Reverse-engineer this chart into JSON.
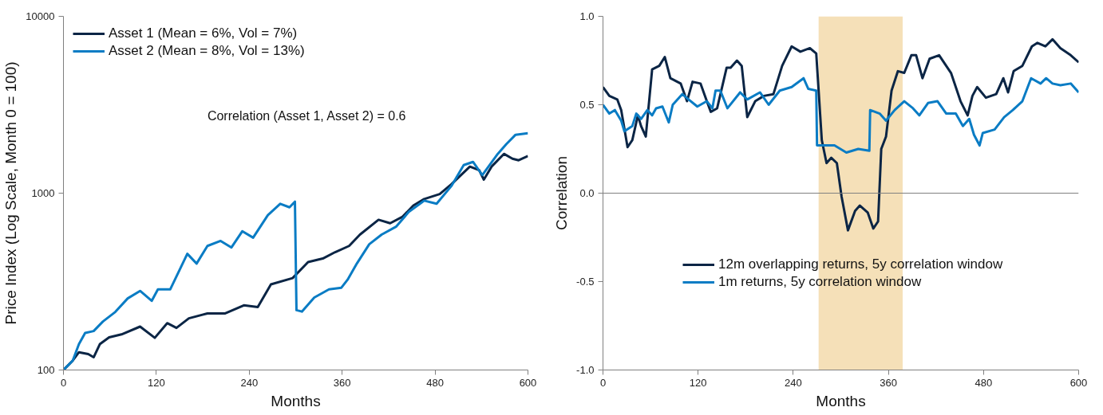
{
  "chart_data": [
    {
      "type": "line",
      "xlabel": "Months",
      "ylabel": "Price Index (Log Scale, Month 0 = 100)",
      "log": "y",
      "xlim": [
        0,
        600
      ],
      "xticks": [
        0,
        120,
        240,
        360,
        480,
        600
      ],
      "ylim": [
        100,
        10000
      ],
      "yticks": [
        100,
        1000,
        10000
      ],
      "grid": false,
      "legend": "top left",
      "annotations": [
        "Correlation (Asset 1, Asset 2) = 0.6"
      ],
      "series": [
        {
          "name": "Asset 1 (Mean = 6%, Vol = 7%)",
          "color": "#0b2545",
          "x": [
            0,
            12,
            20,
            32,
            39,
            47,
            59,
            75,
            99,
            118,
            134,
            146,
            162,
            186,
            209,
            233,
            251,
            268,
            296,
            316,
            335,
            351,
            369,
            383,
            407,
            422,
            438,
            452,
            466,
            486,
            501,
            525,
            537,
            543,
            553,
            569,
            580,
            588,
            600
          ],
          "values": [
            100,
            113,
            126,
            123,
            118,
            140,
            153,
            159,
            176,
            152,
            184,
            173,
            196,
            209,
            209,
            232,
            227,
            305,
            331,
            408,
            427,
            464,
            503,
            583,
            707,
            676,
            736,
            851,
            927,
            988,
            1122,
            1413,
            1349,
            1193,
            1413,
            1668,
            1567,
            1535,
            1622
          ]
        },
        {
          "name": "Asset 2 (Mean = 8%, Vol = 13%)",
          "color": "#0a7cc4",
          "x": [
            0,
            12,
            20,
            28,
            39,
            51,
            67,
            83,
            99,
            114,
            122,
            138,
            150,
            160,
            172,
            186,
            203,
            217,
            231,
            245,
            264,
            280,
            292,
            299,
            301,
            308,
            324,
            343,
            359,
            367,
            379,
            395,
            411,
            430,
            446,
            466,
            482,
            501,
            517,
            529,
            541,
            561,
            572,
            584,
            600
          ],
          "values": [
            100,
            113,
            140,
            162,
            166,
            188,
            213,
            254,
            280,
            246,
            286,
            286,
            368,
            454,
            400,
            503,
            537,
            493,
            609,
            560,
            751,
            871,
            832,
            895,
            218,
            214,
            257,
            286,
            292,
            324,
            400,
            514,
            583,
            648,
            783,
            907,
            871,
            1096,
            1442,
            1503,
            1266,
            1668,
            1893,
            2140,
            2180
          ]
        }
      ]
    },
    {
      "type": "line",
      "xlabel": "Months",
      "ylabel": "Correlation",
      "xlim": [
        0,
        600
      ],
      "xticks": [
        0,
        120,
        240,
        360,
        480,
        600
      ],
      "ylim": [
        -1,
        1
      ],
      "yticks": [
        {
          "value": -1,
          "label": "-1.0"
        },
        {
          "value": -0.5,
          "label": "-0.5"
        },
        {
          "value": 0,
          "label": "0.0"
        },
        {
          "value": 0.5,
          "label": "0.5"
        },
        {
          "value": 1,
          "label": "1.0"
        }
      ],
      "grid": false,
      "legend": "bottom left",
      "ref_lines": [
        {
          "axis": "y",
          "value": 0,
          "color": "#808080"
        }
      ],
      "bands": [
        {
          "axis": "x",
          "from": 272,
          "to": 378,
          "color": "#f5e0b8"
        }
      ],
      "series": [
        {
          "name": "12m overlapping returns, 5y correlation window",
          "color": "#0b2545",
          "x": [
            0,
            8,
            18,
            23,
            31,
            37,
            44,
            48,
            54,
            62,
            71,
            78,
            85,
            98,
            106,
            113,
            123,
            131,
            136,
            144,
            156,
            161,
            169,
            175,
            182,
            192,
            203,
            215,
            226,
            238,
            249,
            261,
            269,
            276,
            282,
            288,
            295,
            301,
            309,
            318,
            324,
            334,
            341,
            347,
            351,
            357,
            364,
            372,
            380,
            389,
            395,
            403,
            412,
            424,
            439,
            451,
            460,
            466,
            472,
            483,
            496,
            505,
            511,
            518,
            529,
            541,
            548,
            558,
            567,
            577,
            590,
            600
          ],
          "values": [
            0.6,
            0.55,
            0.53,
            0.47,
            0.26,
            0.3,
            0.44,
            0.38,
            0.32,
            0.7,
            0.72,
            0.77,
            0.65,
            0.62,
            0.52,
            0.63,
            0.62,
            0.52,
            0.46,
            0.48,
            0.71,
            0.71,
            0.75,
            0.72,
            0.43,
            0.52,
            0.55,
            0.56,
            0.72,
            0.83,
            0.8,
            0.82,
            0.79,
            0.3,
            0.17,
            0.2,
            0.17,
            -0.02,
            -0.21,
            -0.1,
            -0.07,
            -0.11,
            -0.2,
            -0.16,
            0.25,
            0.32,
            0.58,
            0.69,
            0.68,
            0.78,
            0.78,
            0.65,
            0.76,
            0.78,
            0.68,
            0.52,
            0.44,
            0.55,
            0.6,
            0.54,
            0.56,
            0.65,
            0.57,
            0.69,
            0.72,
            0.83,
            0.85,
            0.83,
            0.87,
            0.82,
            0.78,
            0.74
          ]
        },
        {
          "name": "1m returns, 5y correlation window",
          "color": "#0a7cc4",
          "x": [
            0,
            8,
            15,
            23,
            27,
            37,
            42,
            48,
            56,
            62,
            67,
            75,
            83,
            88,
            100,
            108,
            119,
            131,
            138,
            142,
            148,
            157,
            173,
            182,
            198,
            209,
            223,
            238,
            253,
            259,
            269,
            270,
            284,
            292,
            307,
            322,
            336,
            337,
            349,
            357,
            368,
            380,
            391,
            399,
            410,
            422,
            433,
            445,
            454,
            462,
            468,
            475,
            479,
            494,
            506,
            517,
            529,
            540,
            552,
            559,
            567,
            577,
            590,
            600
          ],
          "values": [
            0.5,
            0.45,
            0.47,
            0.41,
            0.35,
            0.38,
            0.45,
            0.42,
            0.47,
            0.44,
            0.48,
            0.49,
            0.4,
            0.5,
            0.56,
            0.53,
            0.49,
            0.52,
            0.48,
            0.58,
            0.58,
            0.48,
            0.57,
            0.53,
            0.57,
            0.5,
            0.58,
            0.6,
            0.65,
            0.59,
            0.58,
            0.27,
            0.27,
            0.27,
            0.23,
            0.25,
            0.24,
            0.47,
            0.45,
            0.41,
            0.47,
            0.52,
            0.48,
            0.44,
            0.51,
            0.52,
            0.45,
            0.45,
            0.38,
            0.42,
            0.33,
            0.27,
            0.34,
            0.36,
            0.43,
            0.47,
            0.52,
            0.65,
            0.62,
            0.65,
            0.62,
            0.61,
            0.62,
            0.57
          ]
        }
      ]
    }
  ]
}
